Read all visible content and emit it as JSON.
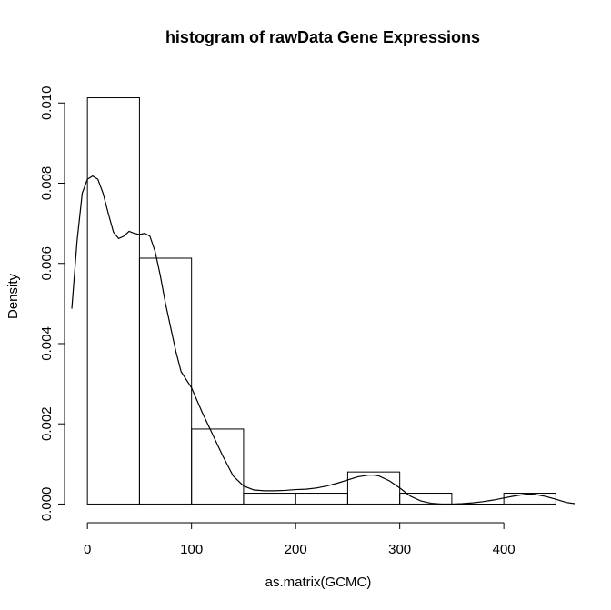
{
  "chart_data": {
    "type": "bar",
    "title": "histogram of rawData Gene Expressions",
    "xlabel": "as.matrix(GCMC)",
    "ylabel": "Density",
    "xlim": [
      -15,
      468
    ],
    "ylim": [
      -0.00033,
      0.01055
    ],
    "grid": false,
    "legend": "none",
    "x_ticks": [
      "0",
      "100",
      "200",
      "300",
      "400"
    ],
    "y_ticks": [
      "0.000",
      "0.002",
      "0.004",
      "0.006",
      "0.008",
      "0.010"
    ],
    "bins": [
      {
        "x0": 0,
        "x1": 50,
        "density": 0.01013
      },
      {
        "x0": 50,
        "x1": 100,
        "density": 0.00613
      },
      {
        "x0": 100,
        "x1": 150,
        "density": 0.00187
      },
      {
        "x0": 150,
        "x1": 200,
        "density": 0.00027
      },
      {
        "x0": 200,
        "x1": 250,
        "density": 0.00027
      },
      {
        "x0": 250,
        "x1": 300,
        "density": 0.0008
      },
      {
        "x0": 300,
        "x1": 350,
        "density": 0.00027
      },
      {
        "x0": 350,
        "x1": 400,
        "density": 0.0
      },
      {
        "x0": 400,
        "x1": 450,
        "density": 0.00027
      }
    ],
    "density_curve": {
      "x": [
        -15,
        -10,
        -5,
        0,
        5,
        10,
        15,
        20,
        25,
        30,
        35,
        40,
        45,
        50,
        55,
        60,
        65,
        70,
        75,
        80,
        85,
        90,
        95,
        100,
        110,
        120,
        130,
        140,
        150,
        160,
        170,
        180,
        190,
        200,
        210,
        220,
        230,
        240,
        250,
        260,
        270,
        275,
        280,
        290,
        300,
        310,
        320,
        330,
        340,
        350,
        360,
        370,
        380,
        390,
        400,
        410,
        420,
        425,
        430,
        440,
        450,
        460,
        468
      ],
      "y": [
        0.00487,
        0.00655,
        0.00775,
        0.0081,
        0.00818,
        0.0081,
        0.00775,
        0.00725,
        0.00678,
        0.00662,
        0.00668,
        0.0068,
        0.00675,
        0.00672,
        0.00675,
        0.00668,
        0.0063,
        0.0057,
        0.005,
        0.0044,
        0.0038,
        0.0033,
        0.0031,
        0.0029,
        0.0023,
        0.00175,
        0.0012,
        0.0007,
        0.00045,
        0.00035,
        0.00033,
        0.00033,
        0.00034,
        0.00036,
        0.00037,
        0.0004,
        0.00045,
        0.00052,
        0.0006,
        0.00068,
        0.00072,
        0.00072,
        0.0007,
        0.00058,
        0.0004,
        0.0002,
        8e-05,
        2e-05,
        0.0,
        0.0,
        1e-05,
        3e-05,
        6e-05,
        0.0001,
        0.00015,
        0.0002,
        0.00024,
        0.00025,
        0.00024,
        0.00019,
        0.00012,
        4e-05,
        1e-05
      ]
    }
  }
}
